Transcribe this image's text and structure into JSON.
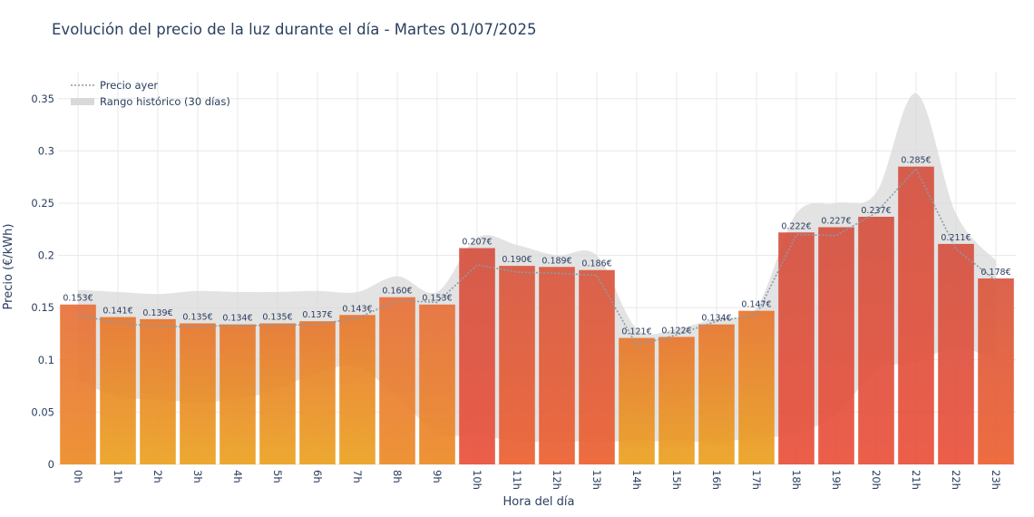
{
  "chart_data": {
    "type": "bar",
    "title": "Evolución del precio de la luz durante el día - Martes 01/07/2025",
    "xlabel": "Hora del día",
    "ylabel": "Precio (€/kWh)",
    "ylim": [
      0,
      0.375
    ],
    "yticks": [
      0,
      0.05,
      0.1,
      0.15,
      0.2,
      0.25,
      0.3,
      0.35
    ],
    "ytick_labels": [
      "0",
      "0.05",
      "0.1",
      "0.15",
      "0.2",
      "0.25",
      "0.3",
      "0.35"
    ],
    "grid": true,
    "legend_position": "top-left",
    "categories": [
      "0h",
      "1h",
      "2h",
      "3h",
      "4h",
      "5h",
      "6h",
      "7h",
      "8h",
      "9h",
      "10h",
      "11h",
      "12h",
      "13h",
      "14h",
      "15h",
      "16h",
      "17h",
      "18h",
      "19h",
      "20h",
      "21h",
      "22h",
      "23h"
    ],
    "series": [
      {
        "type": "bar",
        "values": [
          0.153,
          0.141,
          0.139,
          0.135,
          0.134,
          0.135,
          0.137,
          0.143,
          0.16,
          0.153,
          0.207,
          0.19,
          0.189,
          0.186,
          0.121,
          0.122,
          0.134,
          0.147,
          0.222,
          0.227,
          0.237,
          0.285,
          0.211,
          0.178
        ],
        "labels": [
          "0.153€",
          "0.141€",
          "0.139€",
          "0.135€",
          "0.134€",
          "0.135€",
          "0.137€",
          "0.143€",
          "0.160€",
          "0.153€",
          "0.207€",
          "0.190€",
          "0.189€",
          "0.186€",
          "0.121€",
          "0.122€",
          "0.134€",
          "0.147€",
          "0.222€",
          "0.227€",
          "0.237€",
          "0.285€",
          "0.211€",
          "0.178€"
        ]
      },
      {
        "type": "line",
        "name": "Precio ayer",
        "values": [
          0.143,
          0.135,
          0.132,
          0.132,
          0.133,
          0.133,
          0.134,
          0.14,
          0.157,
          0.155,
          0.191,
          0.184,
          0.183,
          0.181,
          0.114,
          0.124,
          0.137,
          0.143,
          0.22,
          0.219,
          0.241,
          0.283,
          0.206,
          0.176
        ]
      },
      {
        "type": "area",
        "name": "Rango histórico (30 días)",
        "upper": [
          0.167,
          0.165,
          0.163,
          0.166,
          0.165,
          0.165,
          0.166,
          0.165,
          0.18,
          0.165,
          0.217,
          0.21,
          0.2,
          0.2,
          0.13,
          0.13,
          0.14,
          0.15,
          0.24,
          0.25,
          0.26,
          0.355,
          0.24,
          0.195
        ],
        "lower": [
          0.08,
          0.065,
          0.062,
          0.06,
          0.062,
          0.072,
          0.088,
          0.093,
          0.065,
          0.03,
          0.028,
          0.022,
          0.022,
          0.022,
          0.022,
          0.022,
          0.022,
          0.025,
          0.03,
          0.048,
          0.09,
          0.098,
          0.112,
          0.1
        ]
      }
    ]
  },
  "colors": {
    "area_fill": "#d9d9d9",
    "line": "#8a9aa8",
    "grid": "#e8e8e8",
    "bar_low": "#e9a71e",
    "bar_mid": "#ef7a25",
    "bar_high": "#e8503a"
  }
}
